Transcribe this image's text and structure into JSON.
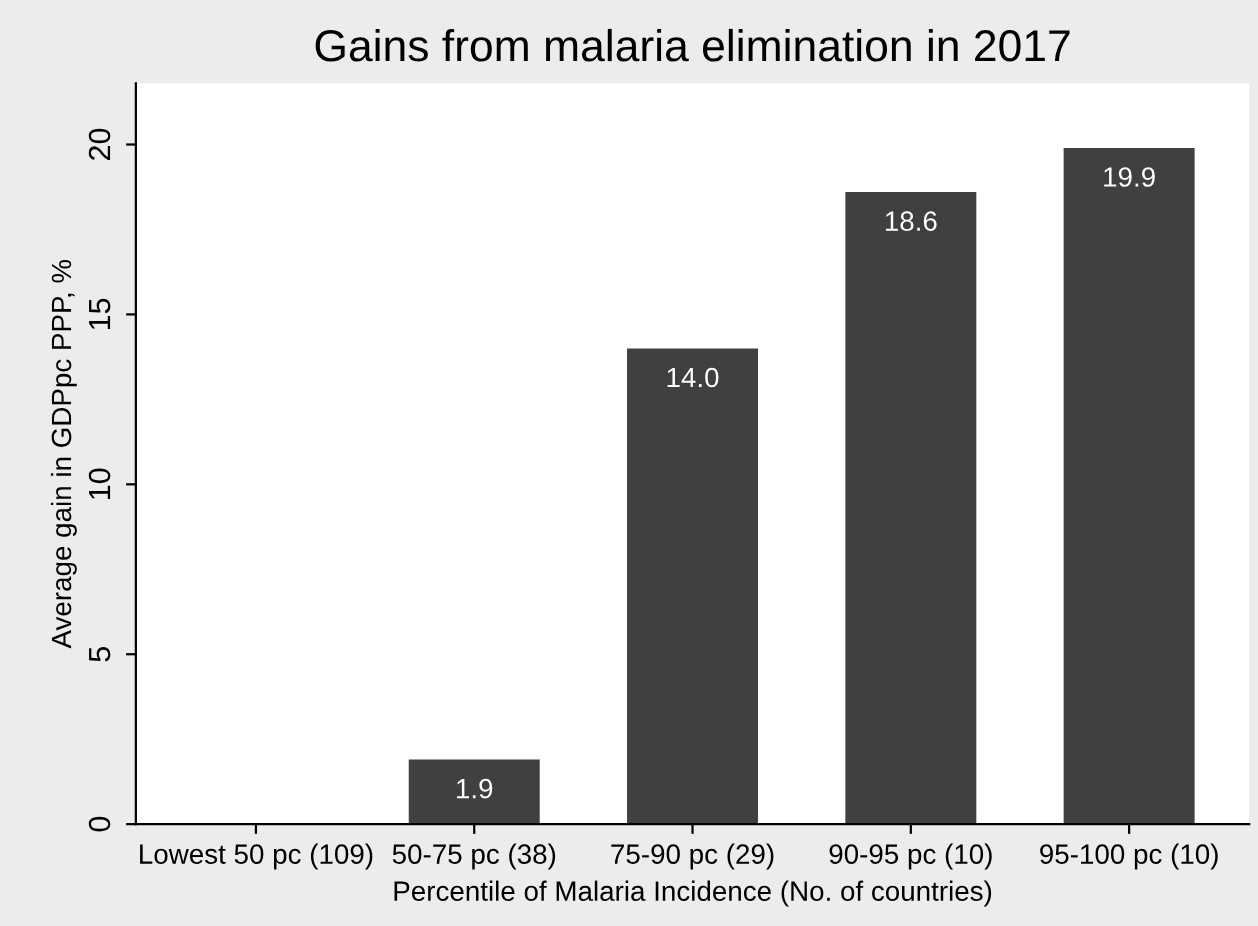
{
  "chart_data": {
    "type": "bar",
    "title": "Gains from malaria elimination in 2017",
    "xlabel": "Percentile of Malaria Incidence (No. of countries)",
    "ylabel": "Average gain in GDPpc PPP, %",
    "categories": [
      "Lowest 50 pc (109)",
      "50-75 pc (38)",
      "75-90 pc (29)",
      "90-95 pc (10)",
      "95-100 pc (10)"
    ],
    "values": [
      0,
      1.9,
      14.0,
      18.6,
      19.9
    ],
    "value_labels": [
      null,
      "1.9",
      "14.0",
      "18.6",
      "19.9"
    ],
    "color": "#404040",
    "ylim": [
      0,
      21.8
    ],
    "yticks": [
      0,
      5,
      10,
      15,
      20
    ],
    "grid": false,
    "legend": false
  }
}
